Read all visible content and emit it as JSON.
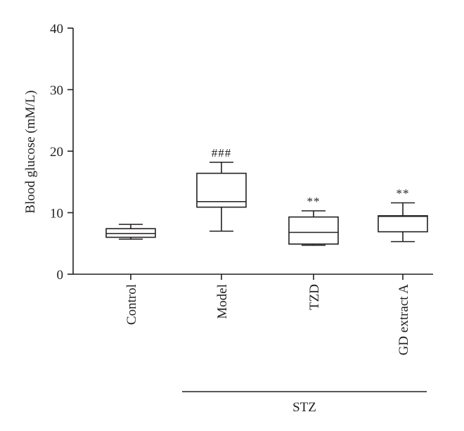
{
  "chart_data": {
    "type": "box",
    "ylabel": "Blood glucose (mM/L)",
    "ylim": [
      0,
      40
    ],
    "yticks": [
      0,
      10,
      20,
      30,
      40
    ],
    "yticks_labels": [
      "0",
      "10",
      "20",
      "30",
      "40"
    ],
    "categories": [
      "Control",
      "Model",
      "TZD",
      "GD extract A"
    ],
    "boxes": [
      {
        "category": "Control",
        "min": 5.7,
        "q1": 6.0,
        "median": 6.6,
        "q3": 7.4,
        "max": 8.1,
        "annotation": ""
      },
      {
        "category": "Model",
        "min": 7.0,
        "q1": 10.9,
        "median": 11.8,
        "q3": 16.4,
        "max": 18.2,
        "annotation": "###"
      },
      {
        "category": "TZD",
        "min": 4.7,
        "q1": 4.9,
        "median": 6.8,
        "q3": 9.3,
        "max": 10.3,
        "annotation": "**"
      },
      {
        "category": "GD extract A",
        "min": 5.3,
        "q1": 6.9,
        "median": 9.4,
        "q3": 9.5,
        "max": 11.6,
        "annotation": "**"
      }
    ],
    "group_bracket": {
      "label": "STZ",
      "categories": [
        "Model",
        "TZD",
        "GD extract A"
      ]
    },
    "grid": false,
    "legend": "none"
  }
}
